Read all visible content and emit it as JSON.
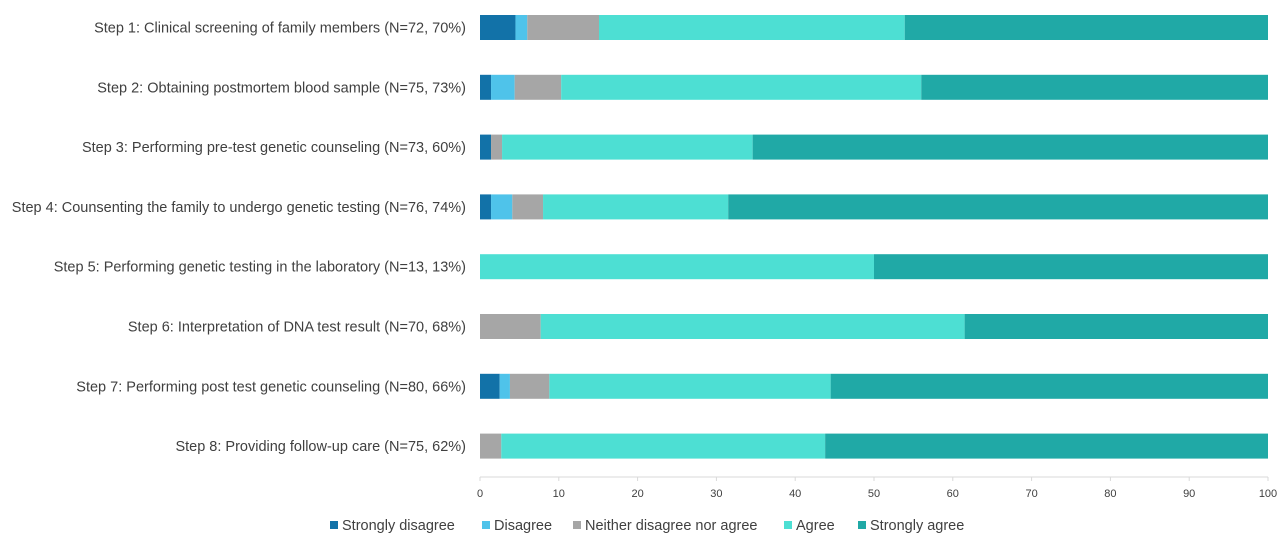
{
  "chart_data": {
    "type": "bar",
    "orientation": "horizontal",
    "stacked": true,
    "categories": [
      "Step 1: Clinical screening of family  members (N=72, 70%)",
      "Step 2: Obtaining postmortem blood sample (N=75, 73%)",
      "Step 3: Performing pre-test genetic counseling (N=73, 60%)",
      "Step 4: Counsenting the family to undergo genetic testing (N=76, 74%)",
      "Step 5: Performing genetic testing in the laboratory (N=13, 13%)",
      "Step 6: Interpretation of DNA test result (N=70, 68%)",
      "Step 7: Performing post test genetic counseling (N=80, 66%)",
      "Step 8: Providing follow-up care (N=75, 62%)"
    ],
    "series": [
      {
        "name": "Strongly disagree",
        "color": "#1272a8",
        "values": [
          4.5,
          1.4,
          1.4,
          1.4,
          0,
          0,
          2.5,
          0
        ]
      },
      {
        "name": "Disagree",
        "color": "#4fc3ea",
        "values": [
          1.5,
          3.0,
          0,
          2.7,
          0,
          0,
          1.3,
          0
        ]
      },
      {
        "name": "Neither disagree nor agree",
        "color": "#a6a6a6",
        "values": [
          9.1,
          5.9,
          1.4,
          3.9,
          0,
          7.7,
          5.0,
          2.7
        ]
      },
      {
        "name": "Agree",
        "color": "#4ddfd3",
        "values": [
          38.8,
          45.7,
          31.8,
          23.5,
          50.0,
          53.8,
          35.7,
          41.1
        ]
      },
      {
        "name": "Strongly agree",
        "color": "#20a9a6",
        "values": [
          46.1,
          44.0,
          65.4,
          68.5,
          50.0,
          38.5,
          55.5,
          56.2
        ]
      }
    ],
    "xlim": [
      0,
      100
    ],
    "xticks": [
      "0",
      "10",
      "20",
      "30",
      "40",
      "50",
      "60",
      "70",
      "80",
      "90",
      "100"
    ],
    "grid": false,
    "legend_position": "bottom"
  }
}
